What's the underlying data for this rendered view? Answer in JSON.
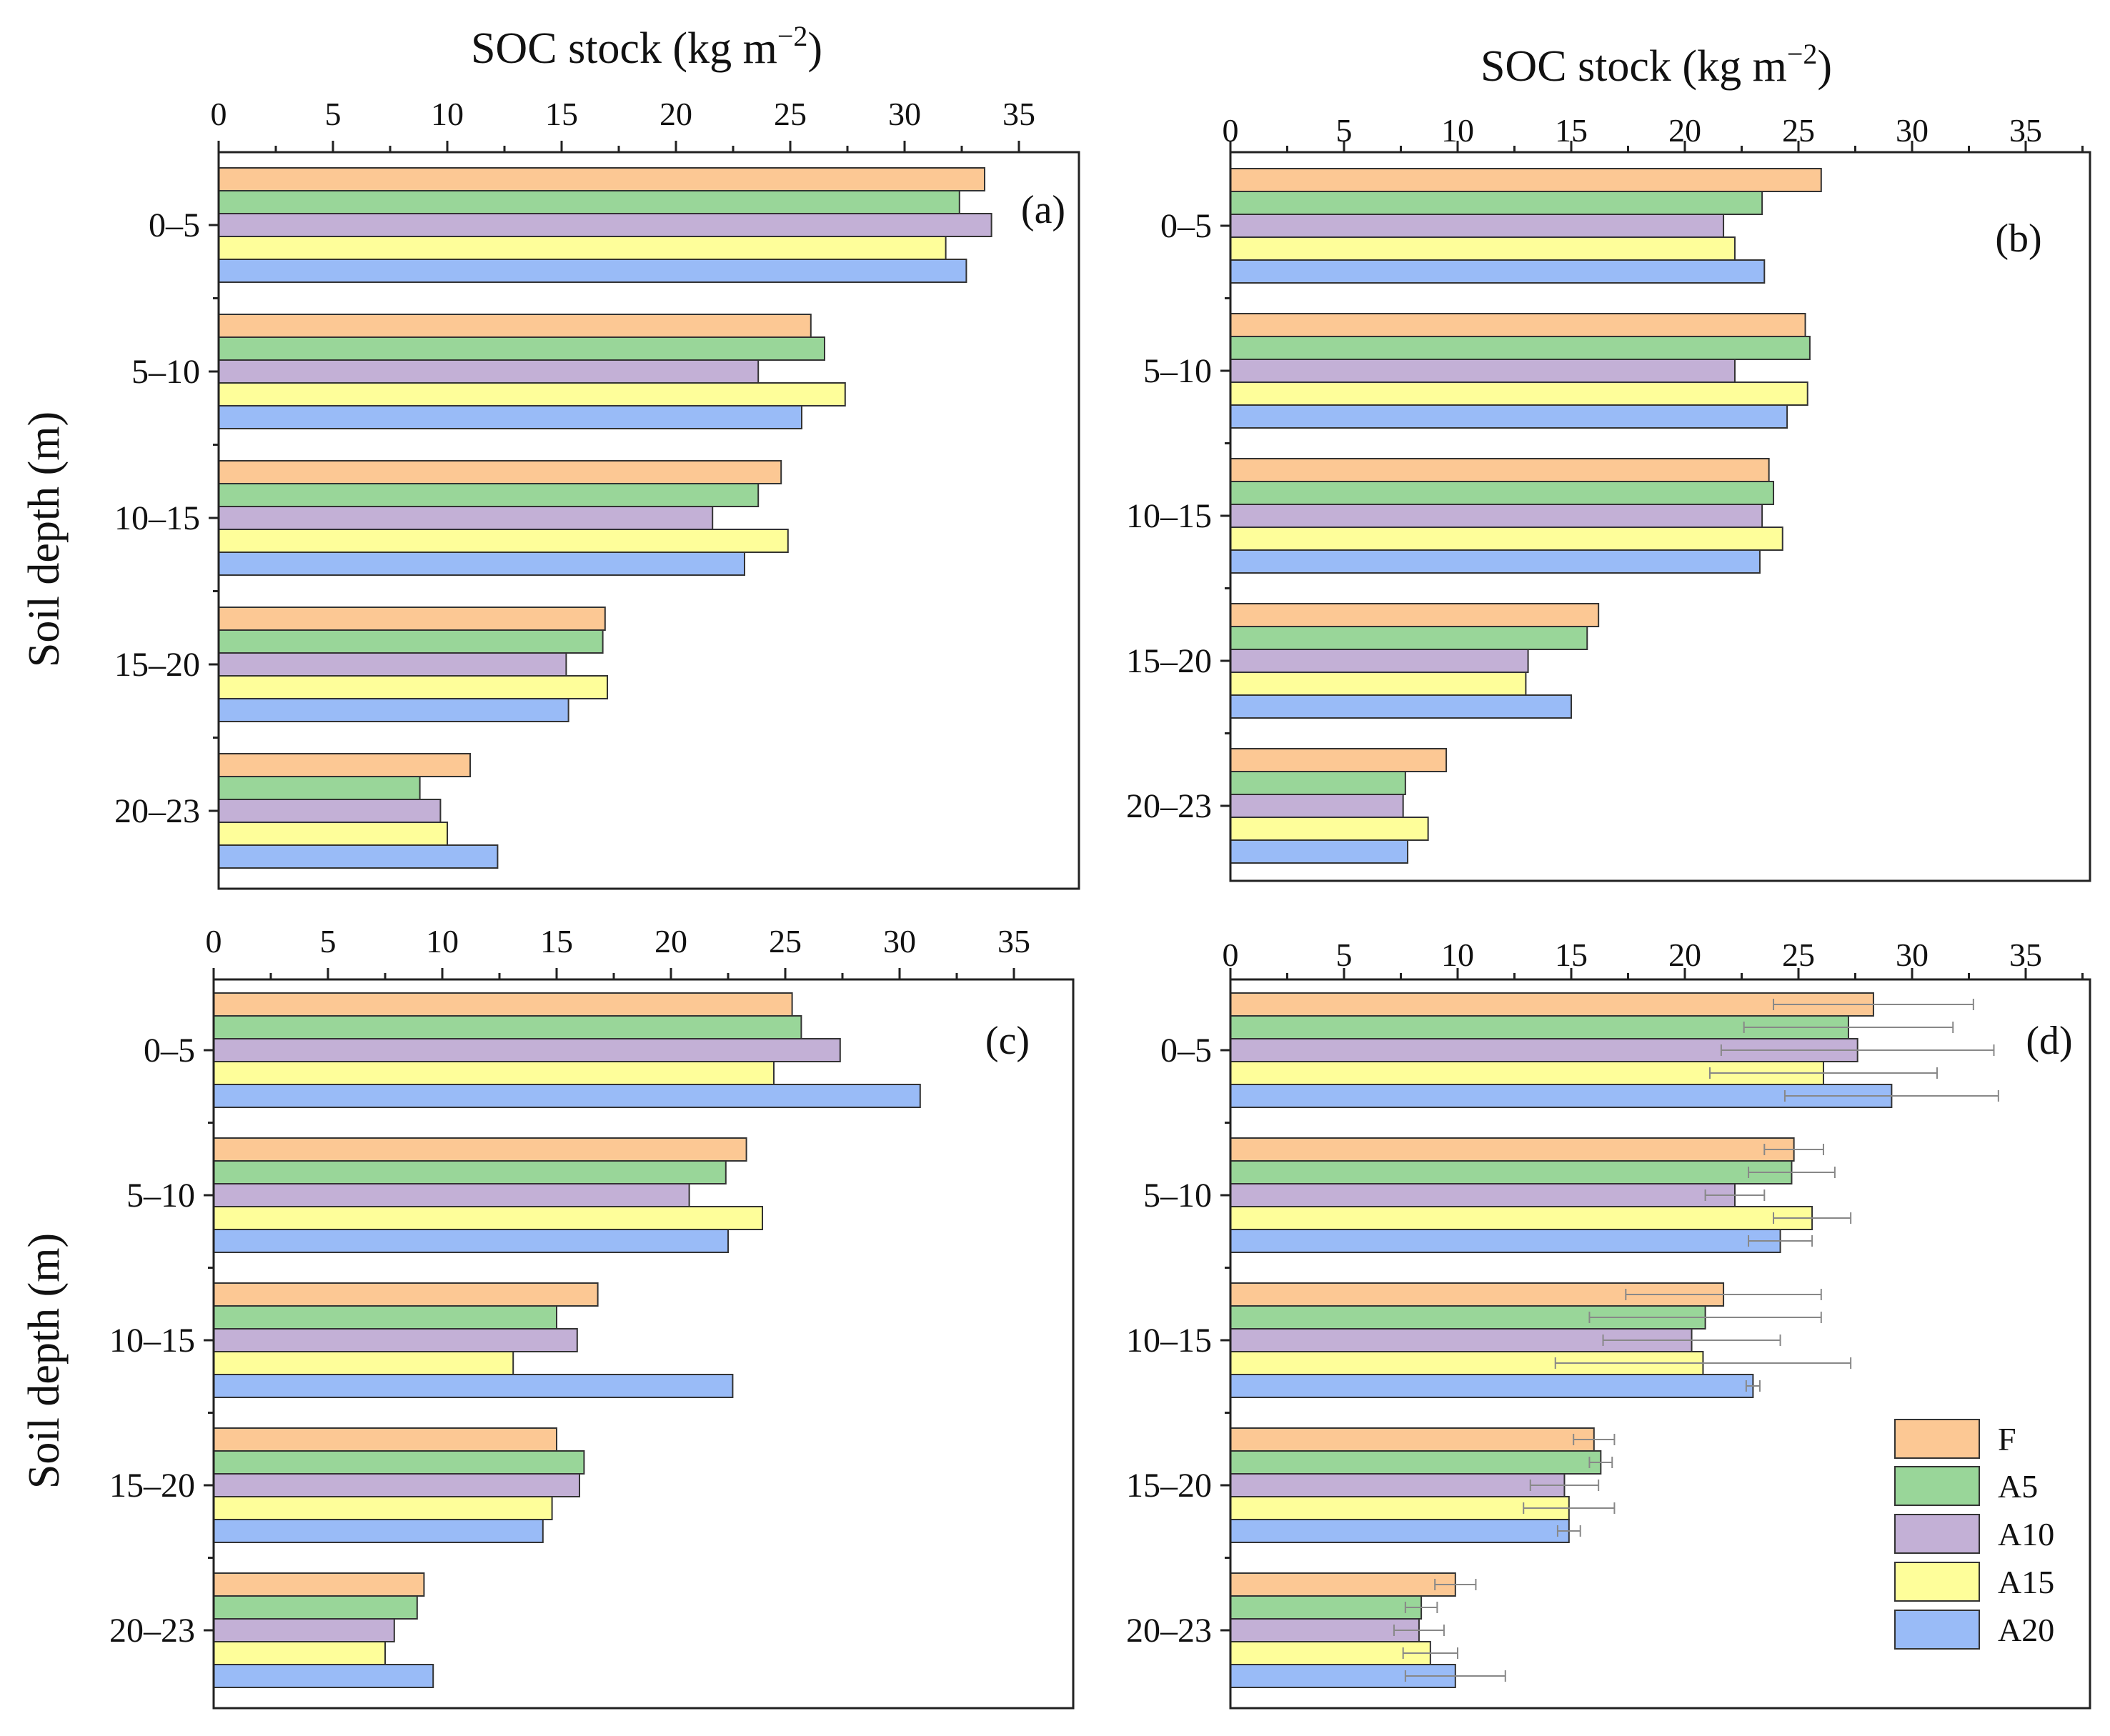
{
  "figure": {
    "top_axis_title": "SOC stock (kg m",
    "top_axis_title_exp": "−2",
    "top_axis_title_close": ")",
    "y_axis_title": "Soil depth (m)"
  },
  "colors": {
    "F": "#fcc894",
    "A5": "#99d699",
    "A10": "#c3b0d6",
    "A15": "#fefe9a",
    "A20": "#99bbf7",
    "outline": "#333333",
    "error": "#888888"
  },
  "legend": [
    "F",
    "A5",
    "A10",
    "A15",
    "A20"
  ],
  "chart_data": [
    {
      "panel": "(a)",
      "type": "bar",
      "orientation": "horizontal",
      "xlim": [
        0,
        38
      ],
      "xticks": [
        "0",
        "5",
        "10",
        "15",
        "20",
        "25",
        "30",
        "35"
      ],
      "categories": [
        "0–5",
        "5–10",
        "10–15",
        "15–20",
        "20–23"
      ],
      "series": [
        {
          "name": "F",
          "values": [
            33.5,
            25.9,
            24.6,
            16.9,
            11.0
          ]
        },
        {
          "name": "A5",
          "values": [
            32.4,
            26.5,
            23.6,
            16.8,
            8.8
          ]
        },
        {
          "name": "A10",
          "values": [
            33.8,
            23.6,
            21.6,
            15.2,
            9.7
          ]
        },
        {
          "name": "A15",
          "values": [
            31.8,
            27.4,
            24.9,
            17.0,
            10.0
          ]
        },
        {
          "name": "A20",
          "values": [
            32.7,
            25.5,
            23.0,
            15.3,
            12.2
          ]
        }
      ]
    },
    {
      "panel": "(b)",
      "type": "bar",
      "orientation": "horizontal",
      "xlim": [
        0,
        38
      ],
      "xticks": [
        "0",
        "5",
        "10",
        "15",
        "20",
        "25",
        "30",
        "35"
      ],
      "categories": [
        "0–5",
        "5–10",
        "10–15",
        "15–20",
        "20–23"
      ],
      "series": [
        {
          "name": "F",
          "values": [
            26.0,
            25.3,
            23.7,
            16.2,
            9.5
          ]
        },
        {
          "name": "A5",
          "values": [
            23.4,
            25.5,
            23.9,
            15.7,
            7.7
          ]
        },
        {
          "name": "A10",
          "values": [
            21.7,
            22.2,
            23.4,
            13.1,
            7.6
          ]
        },
        {
          "name": "A15",
          "values": [
            22.2,
            25.4,
            24.3,
            13.0,
            8.7
          ]
        },
        {
          "name": "A20",
          "values": [
            23.5,
            24.5,
            23.3,
            15.0,
            7.8
          ]
        }
      ]
    },
    {
      "panel": "(c)",
      "type": "bar",
      "orientation": "horizontal",
      "xlim": [
        0,
        38
      ],
      "xticks": [
        "0",
        "5",
        "10",
        "15",
        "20",
        "25",
        "30",
        "35"
      ],
      "categories": [
        "0–5",
        "5–10",
        "10–15",
        "15–20",
        "20–23"
      ],
      "series": [
        {
          "name": "F",
          "values": [
            25.3,
            23.3,
            16.8,
            15.0,
            9.2
          ]
        },
        {
          "name": "A5",
          "values": [
            25.7,
            22.4,
            15.0,
            16.2,
            8.9
          ]
        },
        {
          "name": "A10",
          "values": [
            27.4,
            20.8,
            15.9,
            16.0,
            7.9
          ]
        },
        {
          "name": "A15",
          "values": [
            24.5,
            24.0,
            13.1,
            14.8,
            7.5
          ]
        },
        {
          "name": "A20",
          "values": [
            30.9,
            22.5,
            22.7,
            14.4,
            9.6
          ]
        }
      ]
    },
    {
      "panel": "(d)",
      "type": "bar",
      "orientation": "horizontal",
      "xlim": [
        0,
        38
      ],
      "xticks": [
        "0",
        "5",
        "10",
        "15",
        "20",
        "25",
        "30",
        "35"
      ],
      "categories": [
        "0–5",
        "5–10",
        "10–15",
        "15–20",
        "20–23"
      ],
      "series": [
        {
          "name": "F",
          "values": [
            28.3,
            24.8,
            21.7,
            16.0,
            9.9
          ],
          "errors": [
            4.4,
            1.3,
            4.3,
            0.9,
            0.9
          ]
        },
        {
          "name": "A5",
          "values": [
            27.2,
            24.7,
            20.9,
            16.3,
            8.4
          ],
          "errors": [
            4.6,
            1.9,
            5.1,
            0.5,
            0.7
          ]
        },
        {
          "name": "A10",
          "values": [
            27.6,
            22.2,
            20.3,
            14.7,
            8.3
          ],
          "errors": [
            6.0,
            1.3,
            3.9,
            1.5,
            1.1
          ]
        },
        {
          "name": "A15",
          "values": [
            26.1,
            25.6,
            20.8,
            14.9,
            8.8
          ],
          "errors": [
            5.0,
            1.7,
            6.5,
            2.0,
            1.2
          ]
        },
        {
          "name": "A20",
          "values": [
            29.1,
            24.2,
            23.0,
            14.9,
            9.9
          ],
          "errors": [
            4.7,
            1.4,
            0.3,
            0.5,
            2.2
          ]
        }
      ]
    }
  ]
}
